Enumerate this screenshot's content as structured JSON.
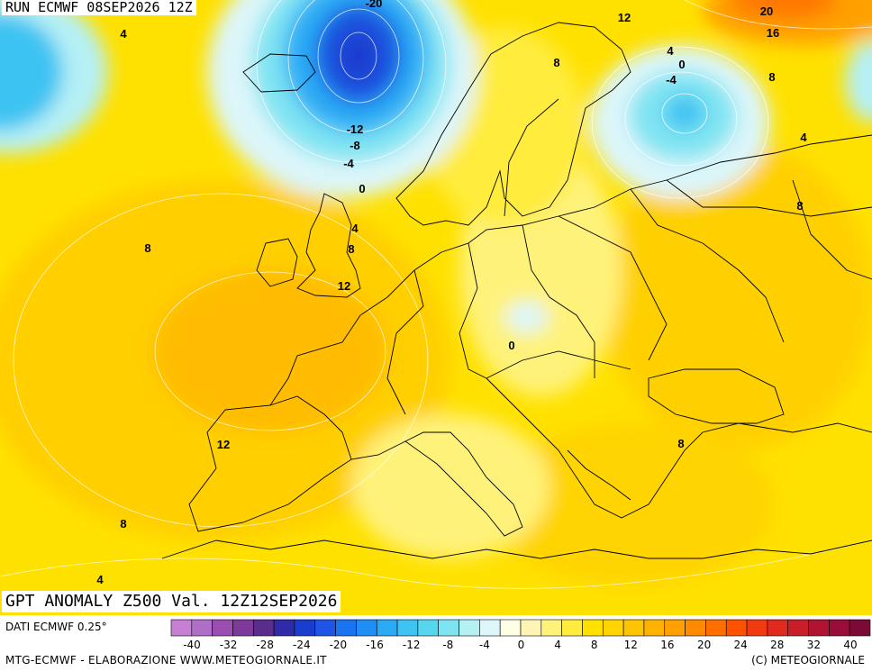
{
  "header": {
    "run_label": "RUN ECMWF 08SEP2026 12Z"
  },
  "title": {
    "text": "GPT ANOMALY Z500 Val. 12Z12SEP2026"
  },
  "source": {
    "text": "DATI ECMWF 0.25°"
  },
  "footer": {
    "left": "MTG-ECMWF - ELABORAZIONE WWW.METEOGIORNALE.IT",
    "right": "(C) METEOGIORNALE"
  },
  "legend": {
    "colors": [
      "#c77fd4",
      "#b06fc7",
      "#9a4fb0",
      "#7d3a98",
      "#5a2c8c",
      "#2f2aa8",
      "#1a3ccf",
      "#1f55e6",
      "#1a73f0",
      "#1f8ff5",
      "#2aaaf5",
      "#3ec3f2",
      "#57d6f0",
      "#7fe4f2",
      "#b5f0f5",
      "#dcf6fa",
      "#ffffe6",
      "#fff4b3",
      "#fff27a",
      "#ffec3d",
      "#ffe100",
      "#ffd400",
      "#ffc400",
      "#ffb300",
      "#ffa000",
      "#ff8a00",
      "#ff6f00",
      "#ff5200",
      "#f23a10",
      "#e02a1e",
      "#c81e2a",
      "#b01432",
      "#980e38",
      "#7a0a36"
    ],
    "tick_labels": [
      "-40",
      "-32",
      "-28",
      "-24",
      "-20",
      "-16",
      "-12",
      "-8",
      "-4",
      "0",
      "4",
      "8",
      "12",
      "16",
      "20",
      "24",
      "28",
      "32",
      "40"
    ]
  },
  "contour_labels": [
    {
      "text": "-20"
    },
    {
      "text": "4"
    },
    {
      "text": "12"
    },
    {
      "text": "20"
    },
    {
      "text": "16"
    },
    {
      "text": "8"
    },
    {
      "text": "4"
    },
    {
      "text": "0"
    },
    {
      "text": "-4"
    },
    {
      "text": "8"
    },
    {
      "text": "-12"
    },
    {
      "text": "-8"
    },
    {
      "text": "-4"
    },
    {
      "text": "0"
    },
    {
      "text": "4"
    },
    {
      "text": "8"
    },
    {
      "text": "8"
    },
    {
      "text": "4"
    },
    {
      "text": "8"
    },
    {
      "text": "12"
    },
    {
      "text": "0"
    },
    {
      "text": "12"
    },
    {
      "text": "8"
    },
    {
      "text": "8"
    },
    {
      "text": "4"
    }
  ]
}
